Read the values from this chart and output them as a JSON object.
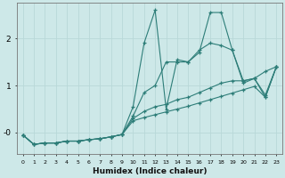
{
  "xlabel": "Humidex (Indice chaleur)",
  "background_color": "#cde8e8",
  "grid_color": "#b8d8d8",
  "line_color": "#2d7d78",
  "xlim": [
    -0.5,
    23.5
  ],
  "ylim": [
    -0.45,
    2.75
  ],
  "yticks": [
    0,
    1,
    2
  ],
  "ytick_labels": [
    "-0",
    "1",
    "2"
  ],
  "xticks": [
    0,
    1,
    2,
    3,
    4,
    5,
    6,
    7,
    8,
    9,
    10,
    11,
    12,
    13,
    14,
    15,
    16,
    17,
    18,
    19,
    20,
    21,
    22,
    23
  ],
  "series": [
    {
      "x": [
        0,
        1,
        2,
        3,
        4,
        5,
        6,
        7,
        8,
        9,
        10,
        11,
        12,
        13,
        14,
        15,
        16,
        17,
        18,
        19,
        20,
        21,
        22,
        23
      ],
      "y": [
        -0.05,
        -0.25,
        -0.22,
        -0.22,
        -0.18,
        -0.18,
        -0.15,
        -0.13,
        -0.09,
        -0.04,
        0.55,
        1.9,
        2.6,
        0.5,
        1.55,
        1.5,
        1.7,
        2.55,
        2.55,
        1.75,
        1.05,
        1.15,
        0.8,
        1.4
      ]
    },
    {
      "x": [
        0,
        1,
        2,
        3,
        4,
        5,
        6,
        7,
        8,
        9,
        10,
        11,
        12,
        13,
        14,
        15,
        16,
        17,
        18,
        19,
        20,
        21,
        22,
        23
      ],
      "y": [
        -0.05,
        -0.25,
        -0.22,
        -0.22,
        -0.18,
        -0.18,
        -0.15,
        -0.13,
        -0.09,
        -0.04,
        0.35,
        0.85,
        1.0,
        1.5,
        1.5,
        1.5,
        1.75,
        1.9,
        1.85,
        1.75,
        1.1,
        1.15,
        1.3,
        1.4
      ]
    },
    {
      "x": [
        0,
        1,
        2,
        3,
        4,
        5,
        6,
        7,
        8,
        9,
        10,
        11,
        12,
        13,
        14,
        15,
        16,
        17,
        18,
        19,
        20,
        21,
        22,
        23
      ],
      "y": [
        -0.05,
        -0.25,
        -0.22,
        -0.22,
        -0.18,
        -0.18,
        -0.15,
        -0.13,
        -0.09,
        -0.04,
        0.3,
        0.45,
        0.55,
        0.6,
        0.7,
        0.75,
        0.85,
        0.95,
        1.05,
        1.1,
        1.1,
        1.15,
        0.75,
        1.4
      ]
    },
    {
      "x": [
        0,
        1,
        2,
        3,
        4,
        5,
        6,
        7,
        8,
        9,
        10,
        11,
        12,
        13,
        14,
        15,
        16,
        17,
        18,
        19,
        20,
        21,
        22,
        23
      ],
      "y": [
        -0.05,
        -0.25,
        -0.22,
        -0.22,
        -0.18,
        -0.18,
        -0.15,
        -0.13,
        -0.09,
        -0.04,
        0.25,
        0.32,
        0.38,
        0.44,
        0.5,
        0.56,
        0.63,
        0.7,
        0.77,
        0.84,
        0.91,
        0.98,
        0.75,
        1.4
      ]
    }
  ]
}
